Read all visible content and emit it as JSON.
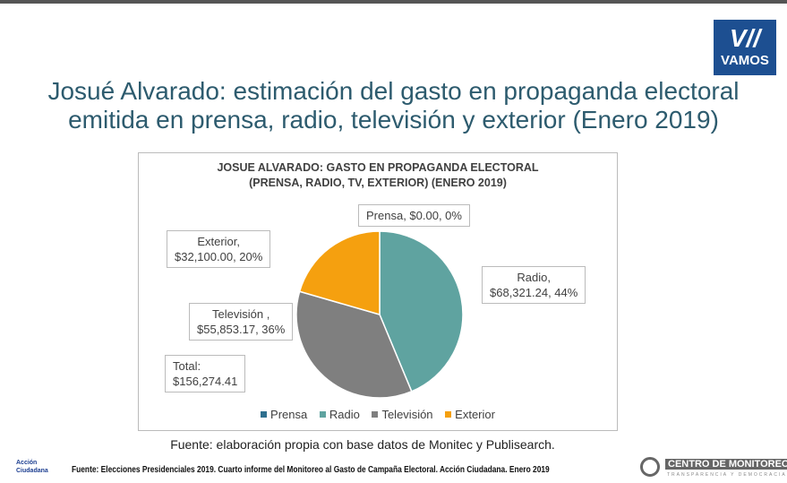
{
  "header": {
    "title_line1": "Josué Alvarado: estimación del gasto en propaganda electoral",
    "title_line2": "emitida en prensa, radio, televisión y exterior (Enero 2019)",
    "logo_text": "VAMOS"
  },
  "chart_data": {
    "type": "pie",
    "title_line1": "JOSUE ALVARADO: GASTO EN PROPAGANDA ELECTORAL",
    "title_line2": "(PRENSA, RADIO, TV, EXTERIOR) (ENERO 2019)",
    "categories": [
      "Prensa",
      "Radio",
      "Televisión",
      "Exterior"
    ],
    "values": [
      0.0,
      68321.24,
      55853.17,
      32100.0
    ],
    "percents": [
      0,
      44,
      36,
      20
    ],
    "colors": [
      "#2e6f8e",
      "#5fa3a0",
      "#7f7f7f",
      "#f5a00f"
    ],
    "labels": [
      [
        "Prensa, $0.00, 0%"
      ],
      [
        "Radio,",
        "$68,321.24, 44%"
      ],
      [
        "Televisión ,",
        "$55,853.17, 36%"
      ],
      [
        "Exterior,",
        "$32,100.00, 20%"
      ]
    ],
    "total_label": [
      "Total:",
      "$156,274.41"
    ],
    "legend_position": "bottom"
  },
  "source": "Fuente: elaboración propia con base datos de Monitec y Publisearch.",
  "footer": {
    "text": "Fuente: Elecciones Presidenciales 2019. Cuarto informe del Monitoreo al Gasto de Campaña Electoral. Acción Ciudadana. Enero 2019",
    "left_logo": "Acción Ciudadana",
    "right_logo": "CENTRO DE MONITOREO DE",
    "right_logo_sub": "TRANSPARENCIA Y DEMOCRACIA"
  }
}
